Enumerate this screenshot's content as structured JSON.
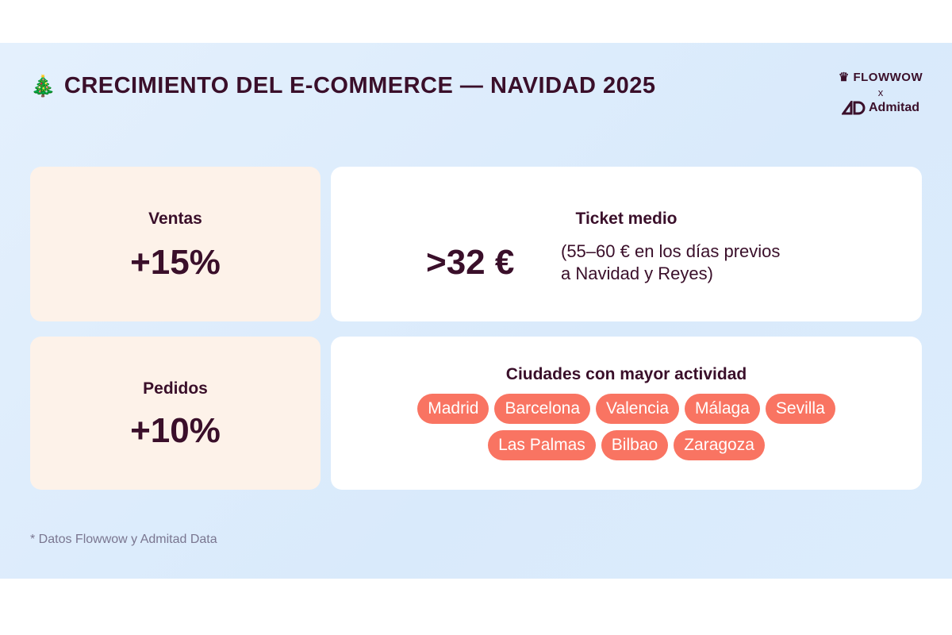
{
  "header": {
    "icon": "christmas-tree-icon",
    "emoji": "🎄",
    "title": "CRECIMIENTO DEL E-COMMERCE — NAVIDAD 2025"
  },
  "logos": {
    "flowwow": "FLOWWOW",
    "separator": "x",
    "admitad": "Admitad"
  },
  "ventas": {
    "label": "Ventas",
    "value": "+15%"
  },
  "pedidos": {
    "label": "Pedidos",
    "value": "+10%"
  },
  "ticket": {
    "label": "Ticket medio",
    "value": ">32 €",
    "note_line1": "(55–60 € en los días previos",
    "note_line2": "a Navidad y Reyes)"
  },
  "ciudades": {
    "label": "Ciudades con mayor actividad",
    "items": [
      "Madrid",
      "Barcelona",
      "Valencia",
      "Málaga",
      "Sevilla",
      "Las Palmas",
      "Bilbao",
      "Zaragoza"
    ]
  },
  "footnote": "* Datos Flowwow y Admitad Data",
  "colors": {
    "text": "#3a0f2a",
    "pill": "#f97462",
    "card_peach": "#fdf2e9",
    "background": "#dfedfc"
  }
}
